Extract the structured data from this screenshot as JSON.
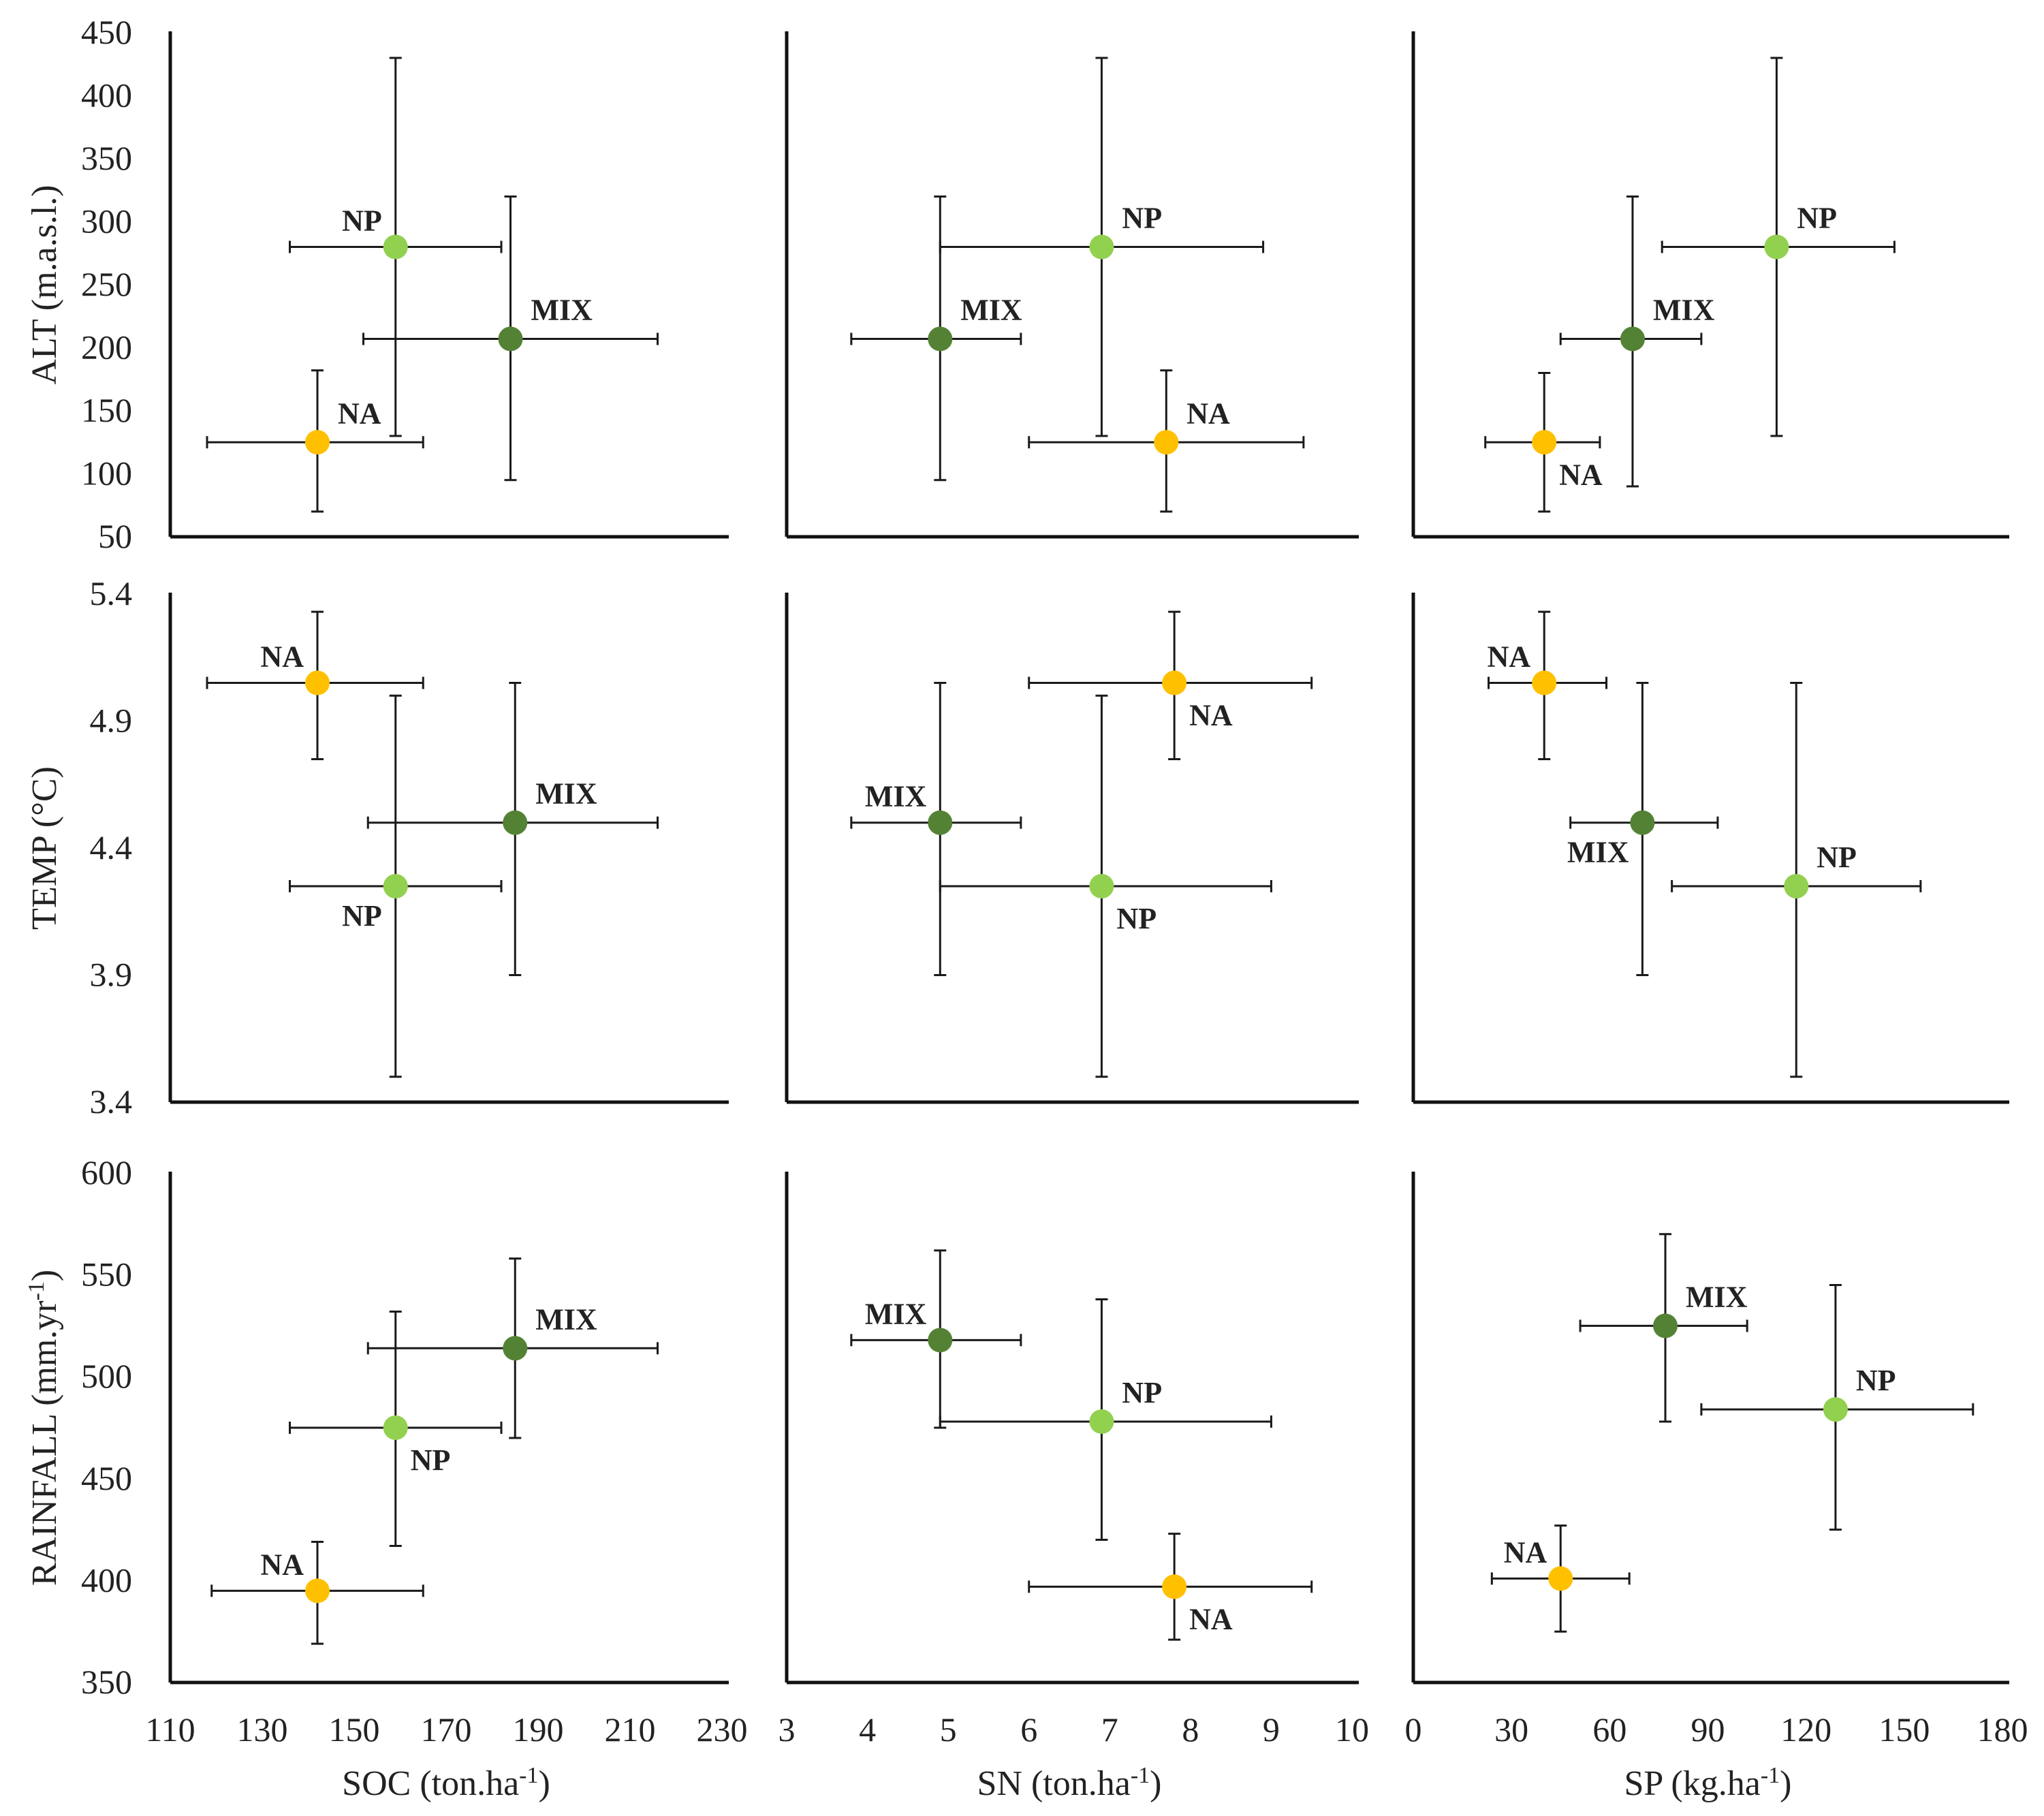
{
  "colors": {
    "NA": "#ffc000",
    "MIX": "#548235",
    "NP": "#92d050"
  },
  "chart_data": [
    {
      "type": "scatter",
      "title": "",
      "xlabel": "",
      "ylabel": "ALT (m.a.s.l.)",
      "xlim": [
        110,
        230
      ],
      "ylim": [
        50,
        450
      ],
      "xticks": [],
      "yticks": [
        "50",
        "100",
        "150",
        "200",
        "250",
        "300",
        "350",
        "400",
        "450"
      ],
      "points": [
        {
          "name": "NP",
          "x": 159,
          "y": 280,
          "xerr": [
            136,
            182
          ],
          "yerr": [
            130,
            430
          ],
          "label_pos": "top-left"
        },
        {
          "name": "MIX",
          "x": 184,
          "y": 207,
          "xerr": [
            152,
            216
          ],
          "yerr": [
            95,
            320
          ],
          "label_pos": "top-right"
        },
        {
          "name": "NA",
          "x": 142,
          "y": 125,
          "xerr": [
            118,
            165
          ],
          "yerr": [
            70,
            182
          ],
          "label_pos": "top-right"
        }
      ]
    },
    {
      "type": "scatter",
      "title": "",
      "xlabel": "",
      "ylabel": "",
      "xlim": [
        3,
        10
      ],
      "ylim": [
        50,
        450
      ],
      "xticks": [],
      "yticks": [],
      "points": [
        {
          "name": "NP",
          "x": 6.9,
          "y": 280,
          "xerr": [
            4.9,
            8.9
          ],
          "yerr": [
            130,
            430
          ],
          "label_pos": "top-right"
        },
        {
          "name": "MIX",
          "x": 4.9,
          "y": 207,
          "xerr": [
            3.8,
            5.9
          ],
          "yerr": [
            95,
            320
          ],
          "label_pos": "top-right"
        },
        {
          "name": "NA",
          "x": 7.7,
          "y": 125,
          "xerr": [
            6.0,
            9.4
          ],
          "yerr": [
            70,
            182
          ],
          "label_pos": "top-right"
        }
      ]
    },
    {
      "type": "scatter",
      "title": "",
      "xlabel": "",
      "ylabel": "",
      "xlim": [
        0,
        180
      ],
      "ylim": [
        50,
        450
      ],
      "xticks": [],
      "yticks": [],
      "points": [
        {
          "name": "NP",
          "x": 111,
          "y": 280,
          "xerr": [
            76,
            147
          ],
          "yerr": [
            130,
            430
          ],
          "label_pos": "top-right"
        },
        {
          "name": "MIX",
          "x": 67,
          "y": 207,
          "xerr": [
            45,
            88
          ],
          "yerr": [
            90,
            320
          ],
          "label_pos": "top-right"
        },
        {
          "name": "NA",
          "x": 40,
          "y": 125,
          "xerr": [
            22,
            57
          ],
          "yerr": [
            70,
            180
          ],
          "label_pos": "bottom-right"
        }
      ]
    },
    {
      "type": "scatter",
      "title": "",
      "xlabel": "",
      "ylabel": "TEMP (°C)",
      "xlim": [
        110,
        230
      ],
      "ylim": [
        3.4,
        5.4
      ],
      "xticks": [],
      "yticks": [
        "3.4",
        "3.9",
        "4.4",
        "4.9",
        "5.4"
      ],
      "points": [
        {
          "name": "NA",
          "x": 142,
          "y": 5.05,
          "xerr": [
            118,
            165
          ],
          "yerr": [
            4.75,
            5.33
          ],
          "label_pos": "top-left"
        },
        {
          "name": "MIX",
          "x": 185,
          "y": 4.5,
          "xerr": [
            153,
            216
          ],
          "yerr": [
            3.9,
            5.05
          ],
          "label_pos": "top-right"
        },
        {
          "name": "NP",
          "x": 159,
          "y": 4.25,
          "xerr": [
            136,
            182
          ],
          "yerr": [
            3.5,
            5.0
          ],
          "label_pos": "bottom-left"
        }
      ]
    },
    {
      "type": "scatter",
      "title": "",
      "xlabel": "",
      "ylabel": "",
      "xlim": [
        3,
        10
      ],
      "ylim": [
        3.4,
        5.4
      ],
      "xticks": [],
      "yticks": [],
      "points": [
        {
          "name": "NA",
          "x": 7.8,
          "y": 5.05,
          "xerr": [
            6.0,
            9.5
          ],
          "yerr": [
            4.75,
            5.33
          ],
          "label_pos": "bottom-right"
        },
        {
          "name": "MIX",
          "x": 4.9,
          "y": 4.5,
          "xerr": [
            3.8,
            5.9
          ],
          "yerr": [
            3.9,
            5.05
          ],
          "label_pos": "top-left"
        },
        {
          "name": "NP",
          "x": 6.9,
          "y": 4.25,
          "xerr": [
            4.9,
            9.0
          ],
          "yerr": [
            3.5,
            5.0
          ],
          "label_pos": "bottom-right"
        }
      ]
    },
    {
      "type": "scatter",
      "title": "",
      "xlabel": "",
      "ylabel": "",
      "xlim": [
        0,
        180
      ],
      "ylim": [
        3.4,
        5.4
      ],
      "xticks": [],
      "yticks": [],
      "points": [
        {
          "name": "NA",
          "x": 40,
          "y": 5.05,
          "xerr": [
            23,
            59
          ],
          "yerr": [
            4.75,
            5.33
          ],
          "label_pos": "top-left"
        },
        {
          "name": "MIX",
          "x": 70,
          "y": 4.5,
          "xerr": [
            48,
            93
          ],
          "yerr": [
            3.9,
            5.05
          ],
          "label_pos": "bottom-left"
        },
        {
          "name": "NP",
          "x": 117,
          "y": 4.25,
          "xerr": [
            79,
            155
          ],
          "yerr": [
            3.5,
            5.05
          ],
          "label_pos": "top-right"
        }
      ]
    },
    {
      "type": "scatter",
      "title": "",
      "xlabel": "SOC (ton.ha-1)",
      "ylabel": "RAINFALL (mm.yr-1)",
      "xlim": [
        110,
        230
      ],
      "ylim": [
        350,
        600
      ],
      "xticks": [
        "110",
        "130",
        "150",
        "170",
        "190",
        "210",
        "230"
      ],
      "yticks": [
        "350",
        "400",
        "450",
        "500",
        "550",
        "600"
      ],
      "points": [
        {
          "name": "MIX",
          "x": 185,
          "y": 514,
          "xerr": [
            153,
            216
          ],
          "yerr": [
            470,
            558
          ],
          "label_pos": "top-right"
        },
        {
          "name": "NP",
          "x": 159,
          "y": 475,
          "xerr": [
            136,
            182
          ],
          "yerr": [
            417,
            532
          ],
          "label_pos": "bottom-right"
        },
        {
          "name": "NA",
          "x": 142,
          "y": 395,
          "xerr": [
            119,
            165
          ],
          "yerr": [
            369,
            419
          ],
          "label_pos": "top-left"
        }
      ]
    },
    {
      "type": "scatter",
      "title": "",
      "xlabel": "SN (ton.ha-1)",
      "ylabel": "",
      "xlim": [
        3,
        10
      ],
      "ylim": [
        350,
        600
      ],
      "xticks": [
        "3",
        "4",
        "5",
        "6",
        "7",
        "8",
        "9",
        "10"
      ],
      "yticks": [],
      "points": [
        {
          "name": "MIX",
          "x": 4.9,
          "y": 518,
          "xerr": [
            3.8,
            5.9
          ],
          "yerr": [
            475,
            562
          ],
          "label_pos": "top-left"
        },
        {
          "name": "NP",
          "x": 6.9,
          "y": 478,
          "xerr": [
            4.9,
            9.0
          ],
          "yerr": [
            420,
            538
          ],
          "label_pos": "top-right"
        },
        {
          "name": "NA",
          "x": 7.8,
          "y": 397,
          "xerr": [
            6.0,
            9.5
          ],
          "yerr": [
            371,
            423
          ],
          "label_pos": "bottom-right"
        }
      ]
    },
    {
      "type": "scatter",
      "title": "",
      "xlabel": "SP (kg.ha-1)",
      "ylabel": "",
      "xlim": [
        0,
        180
      ],
      "ylim": [
        350,
        600
      ],
      "xticks": [
        "0",
        "30",
        "60",
        "90",
        "120",
        "150",
        "180"
      ],
      "yticks": [],
      "points": [
        {
          "name": "MIX",
          "x": 77,
          "y": 525,
          "xerr": [
            51,
            102
          ],
          "yerr": [
            478,
            570
          ],
          "label_pos": "top-right"
        },
        {
          "name": "NP",
          "x": 129,
          "y": 484,
          "xerr": [
            88,
            171
          ],
          "yerr": [
            425,
            545
          ],
          "label_pos": "top-right"
        },
        {
          "name": "NA",
          "x": 45,
          "y": 401,
          "xerr": [
            24,
            66
          ],
          "yerr": [
            375,
            427
          ],
          "label_pos": "top-left"
        }
      ]
    }
  ]
}
